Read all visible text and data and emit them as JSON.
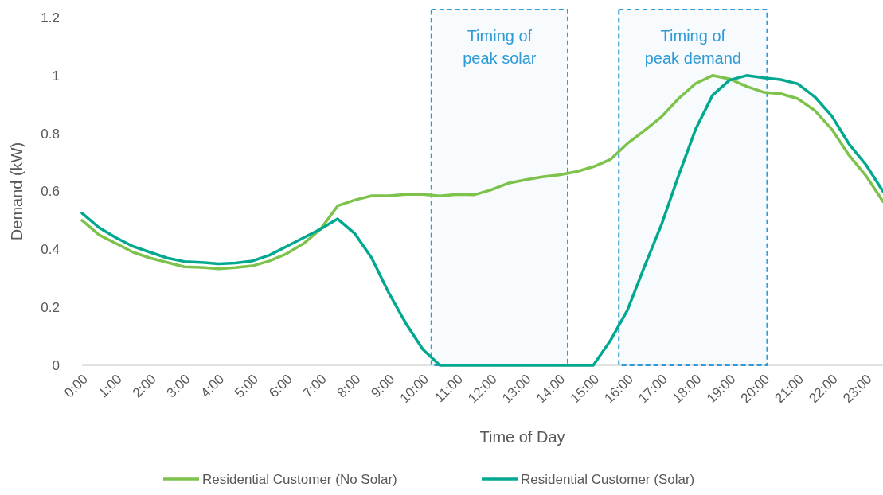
{
  "chart_data": {
    "type": "line",
    "xlabel": "Time of Day",
    "ylabel": "Demand (kW)",
    "x": [
      0,
      0.5,
      1,
      1.5,
      2,
      2.5,
      3,
      3.5,
      4,
      4.5,
      5,
      5.5,
      6,
      6.5,
      7,
      7.5,
      8,
      8.5,
      9,
      9.5,
      10,
      10.5,
      11,
      11.5,
      12,
      12.5,
      13,
      13.5,
      14,
      14.5,
      15,
      15.5,
      16,
      16.5,
      17,
      17.5,
      18,
      18.5,
      19,
      19.5,
      20,
      20.5,
      21,
      21.5,
      22,
      22.5,
      23,
      23.5
    ],
    "series": [
      {
        "name": "Residential Customer (No Solar)",
        "color": "#7dc24b",
        "values": [
          0.5,
          0.45,
          0.42,
          0.39,
          0.37,
          0.355,
          0.34,
          0.338,
          0.333,
          0.337,
          0.343,
          0.36,
          0.385,
          0.42,
          0.47,
          0.55,
          0.57,
          0.585,
          0.585,
          0.59,
          0.59,
          0.584,
          0.59,
          0.588,
          0.605,
          0.628,
          0.64,
          0.65,
          0.657,
          0.668,
          0.685,
          0.71,
          0.765,
          0.81,
          0.857,
          0.92,
          0.972,
          1.0,
          0.988,
          0.962,
          0.942,
          0.937,
          0.92,
          0.879,
          0.814,
          0.725,
          0.654,
          0.565
        ]
      },
      {
        "name": "Residential Customer (Solar)",
        "color": "#00a88f",
        "values": [
          0.525,
          0.475,
          0.44,
          0.41,
          0.39,
          0.37,
          0.358,
          0.355,
          0.35,
          0.353,
          0.36,
          0.38,
          0.41,
          0.44,
          0.47,
          0.505,
          0.455,
          0.37,
          0.25,
          0.145,
          0.055,
          0,
          0,
          0,
          0,
          0,
          0,
          0,
          0,
          0,
          0,
          0.085,
          0.19,
          0.34,
          0.485,
          0.654,
          0.814,
          0.932,
          0.984,
          1.0,
          0.992,
          0.986,
          0.971,
          0.926,
          0.86,
          0.764,
          0.692,
          0.6
        ]
      }
    ],
    "xlim": [
      0,
      23.5
    ],
    "xticks": [
      {
        "value": 0,
        "label": "0:00"
      },
      {
        "value": 1,
        "label": "1:00"
      },
      {
        "value": 2,
        "label": "2:00"
      },
      {
        "value": 3,
        "label": "3:00"
      },
      {
        "value": 4,
        "label": "4:00"
      },
      {
        "value": 5,
        "label": "5:00"
      },
      {
        "value": 6,
        "label": "6:00"
      },
      {
        "value": 7,
        "label": "7:00"
      },
      {
        "value": 8,
        "label": "8:00"
      },
      {
        "value": 9,
        "label": "9:00"
      },
      {
        "value": 10,
        "label": "10:00"
      },
      {
        "value": 11,
        "label": "11:00"
      },
      {
        "value": 12,
        "label": "12:00"
      },
      {
        "value": 13,
        "label": "13:00"
      },
      {
        "value": 14,
        "label": "14:00"
      },
      {
        "value": 15,
        "label": "15:00"
      },
      {
        "value": 16,
        "label": "16:00"
      },
      {
        "value": 17,
        "label": "17:00"
      },
      {
        "value": 18,
        "label": "18:00"
      },
      {
        "value": 19,
        "label": "19:00"
      },
      {
        "value": 20,
        "label": "20:00"
      },
      {
        "value": 21,
        "label": "21:00"
      },
      {
        "value": 22,
        "label": "22:00"
      },
      {
        "value": 23,
        "label": "23:00"
      }
    ],
    "ylim": [
      0,
      1.2
    ],
    "yticks": [
      0,
      0.2,
      0.4,
      0.6,
      0.8,
      1,
      1.2
    ],
    "bands": [
      {
        "axis": "x",
        "from": 10.25,
        "to": 14.25,
        "label": "Timing of\npeak solar",
        "color": "#2e9ad6"
      },
      {
        "axis": "x",
        "from": 15.75,
        "to": 20.1,
        "label": "Timing of\npeak demand",
        "color": "#2e9ad6"
      }
    ],
    "grid": false,
    "legend": "bottom",
    "marker": "none",
    "line_style": "solid"
  }
}
